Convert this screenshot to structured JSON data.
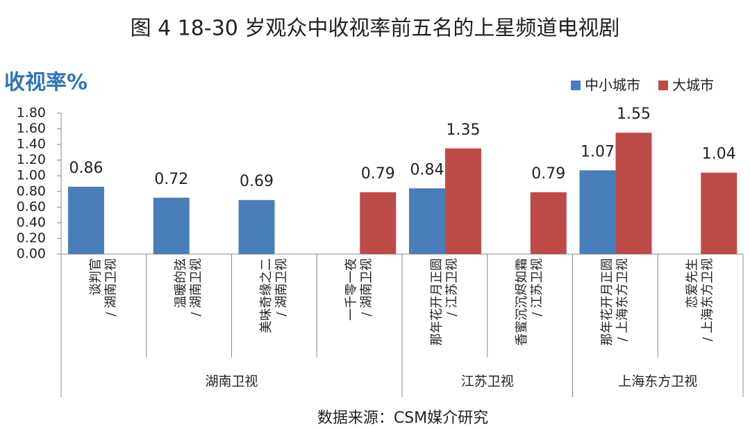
{
  "chart_data": {
    "type": "bar",
    "title": "图 4 18-30 岁观众中收视率前五名的上星频道电视剧",
    "y_label": "收视率%",
    "source": "数据来源：CSM媒介研究",
    "categories": [
      [
        "谈判官",
        "/ 湖南卫视"
      ],
      [
        "温暖的弦",
        "/ 湖南卫视"
      ],
      [
        "美味奇缘之二",
        "/ 湖南卫视"
      ],
      [
        "一千零一夜",
        "/ 湖南卫视"
      ],
      [
        "那年花开月正圆",
        "/ 江苏卫视"
      ],
      [
        "香蜜沉沉烬如霜",
        "/ 江苏卫视"
      ],
      [
        "那年花开月正圆",
        "/ 上海东方卫视"
      ],
      [
        "恋爱先生",
        "/ 上海东方卫视"
      ]
    ],
    "category_groups": [
      "湖南卫视",
      "湖南卫视",
      "湖南卫视",
      "湖南卫视",
      "江苏卫视",
      "江苏卫视",
      "上海东方卫视",
      "上海东方卫视"
    ],
    "series": [
      {
        "name": "中小城市",
        "color": "#4a7ebb",
        "values": [
          0.86,
          0.72,
          0.69,
          null,
          0.84,
          null,
          1.07,
          null
        ]
      },
      {
        "name": "大城市",
        "color": "#be4b48",
        "values": [
          null,
          null,
          null,
          0.79,
          1.35,
          0.79,
          1.55,
          1.04
        ]
      }
    ],
    "ylim": [
      0,
      1.8
    ],
    "yticks": [
      {
        "value": 0,
        "label": "0.00"
      },
      {
        "value": 0.2,
        "label": "0.20"
      },
      {
        "value": 0.4,
        "label": "0.40"
      },
      {
        "value": 0.6,
        "label": "0.60"
      },
      {
        "value": 0.8,
        "label": "0.80"
      },
      {
        "value": 1.0,
        "label": "1.00"
      },
      {
        "value": 1.2,
        "label": "1.20"
      },
      {
        "value": 1.4,
        "label": "1.40"
      },
      {
        "value": 1.6,
        "label": "1.60"
      },
      {
        "value": 1.8,
        "label": "1.80"
      }
    ],
    "legend": "top-right",
    "grid": false
  }
}
